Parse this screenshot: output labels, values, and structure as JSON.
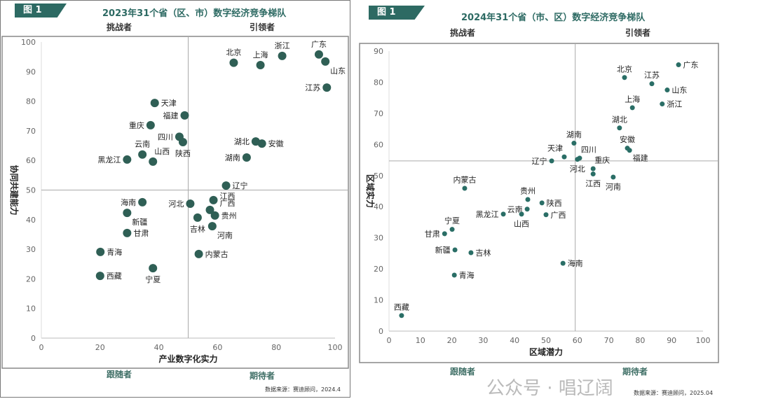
{
  "chart_data": [
    {
      "type": "scatter",
      "tag": "图 1",
      "title": "2023年31个省（区、市）数字经济竞争梯队",
      "xlabel": "产业数字化实力",
      "ylabel": "协同共建能力",
      "xlim": [
        0,
        100
      ],
      "ylim": [
        0,
        100
      ],
      "xticks": [
        0,
        20,
        40,
        60,
        80,
        100
      ],
      "yticks": [
        0,
        10,
        20,
        30,
        40,
        50,
        60,
        70,
        80,
        90,
        100
      ],
      "divider": {
        "x": 50,
        "y": 50
      },
      "quadrants": {
        "top_left": "挑战者",
        "top_right": "引领者",
        "bottom_left": "跟随者",
        "bottom_right": "期待者"
      },
      "source": "数据来源：赛迪顾问，2024.4",
      "color": "#2f5f55",
      "points": [
        {
          "name": "北京",
          "x": 65.5,
          "y": 93
        },
        {
          "name": "上海",
          "x": 74.6,
          "y": 92.2
        },
        {
          "name": "浙江",
          "x": 82,
          "y": 95.3
        },
        {
          "name": "广东",
          "x": 94.5,
          "y": 95.8
        },
        {
          "name": "山东",
          "x": 96.7,
          "y": 93.4
        },
        {
          "name": "江苏",
          "x": 97.2,
          "y": 84.6
        },
        {
          "name": "天津",
          "x": 38.6,
          "y": 79.4
        },
        {
          "name": "福建",
          "x": 48.8,
          "y": 75.2
        },
        {
          "name": "重庆",
          "x": 37.2,
          "y": 71.9
        },
        {
          "name": "四川",
          "x": 47,
          "y": 68
        },
        {
          "name": "陕西",
          "x": 48.2,
          "y": 66.2
        },
        {
          "name": "云南",
          "x": 34.4,
          "y": 62
        },
        {
          "name": "山西",
          "x": 38,
          "y": 59.6
        },
        {
          "name": "黑龙江",
          "x": 29.2,
          "y": 60.3
        },
        {
          "name": "湖北",
          "x": 73,
          "y": 66.4
        },
        {
          "name": "安徽",
          "x": 75.1,
          "y": 65.7
        },
        {
          "name": "湖南",
          "x": 69.9,
          "y": 61
        },
        {
          "name": "辽宁",
          "x": 62.9,
          "y": 51.5
        },
        {
          "name": "海南",
          "x": 34.4,
          "y": 45.9
        },
        {
          "name": "新疆",
          "x": 29.2,
          "y": 42.3
        },
        {
          "name": "甘肃",
          "x": 29.2,
          "y": 35.5
        },
        {
          "name": "青海",
          "x": 20.1,
          "y": 29.1
        },
        {
          "name": "西藏",
          "x": 20,
          "y": 21
        },
        {
          "name": "宁夏",
          "x": 38,
          "y": 23.6
        },
        {
          "name": "河北",
          "x": 50.7,
          "y": 45.4
        },
        {
          "name": "江西",
          "x": 58.6,
          "y": 46.6
        },
        {
          "name": "广西",
          "x": 57.4,
          "y": 43.3
        },
        {
          "name": "贵州",
          "x": 59.1,
          "y": 41.4
        },
        {
          "name": "吉林",
          "x": 53.2,
          "y": 40.7
        },
        {
          "name": "河南",
          "x": 58.2,
          "y": 37.8
        },
        {
          "name": "内蒙古",
          "x": 53.6,
          "y": 28.4
        }
      ]
    },
    {
      "type": "scatter",
      "tag": "图 1",
      "title": "2024年31个省（市、区）数字经济竞争梯队",
      "xlabel": "区域潜力",
      "ylabel": "区域实力",
      "xlim": [
        0,
        100
      ],
      "ylim": [
        0,
        90
      ],
      "xticks": [
        0,
        10,
        20,
        30,
        40,
        50,
        60,
        70,
        80,
        90,
        100
      ],
      "yticks": [
        0,
        10,
        20,
        30,
        40,
        50,
        60,
        70,
        80,
        90
      ],
      "divider": {
        "x": 59.3,
        "y": 54.7
      },
      "quadrants": {
        "top_left": "挑战者",
        "top_right": "引领者",
        "bottom_left": "跟随者",
        "bottom_right": "期待者"
      },
      "source": "数据来源：赛迪顾问，2025.04",
      "color": "#2a6e66",
      "points": [
        {
          "name": "广东",
          "x": 92.2,
          "y": 85.6
        },
        {
          "name": "北京",
          "x": 75,
          "y": 81.5
        },
        {
          "name": "江苏",
          "x": 83.7,
          "y": 79.5
        },
        {
          "name": "山东",
          "x": 88.6,
          "y": 77.5
        },
        {
          "name": "浙江",
          "x": 87,
          "y": 73
        },
        {
          "name": "上海",
          "x": 77.5,
          "y": 71.8
        },
        {
          "name": "湖北",
          "x": 73.4,
          "y": 65.3
        },
        {
          "name": "湖南",
          "x": 58.9,
          "y": 60.4
        },
        {
          "name": "安徽",
          "x": 75.9,
          "y": 58.8
        },
        {
          "name": "福建",
          "x": 76.6,
          "y": 58.1
        },
        {
          "name": "天津",
          "x": 55.8,
          "y": 56
        },
        {
          "name": "四川",
          "x": 60.7,
          "y": 55.6
        },
        {
          "name": "河北",
          "x": 60,
          "y": 55.2
        },
        {
          "name": "辽宁",
          "x": 51.8,
          "y": 54.7
        },
        {
          "name": "重庆",
          "x": 65,
          "y": 52.2
        },
        {
          "name": "江西",
          "x": 65,
          "y": 50.5
        },
        {
          "name": "河南",
          "x": 71.4,
          "y": 49.5
        },
        {
          "name": "内蒙古",
          "x": 24.1,
          "y": 45.9
        },
        {
          "name": "贵州",
          "x": 44.2,
          "y": 42.3
        },
        {
          "name": "陕西",
          "x": 48.7,
          "y": 41.2
        },
        {
          "name": "云南",
          "x": 44,
          "y": 39.2
        },
        {
          "name": "黑龙江",
          "x": 36.4,
          "y": 37.6
        },
        {
          "name": "山西",
          "x": 42.2,
          "y": 37.6
        },
        {
          "name": "广西",
          "x": 50,
          "y": 37.4
        },
        {
          "name": "宁夏",
          "x": 20.1,
          "y": 32.7
        },
        {
          "name": "甘肃",
          "x": 17.7,
          "y": 31.3
        },
        {
          "name": "新疆",
          "x": 21,
          "y": 26.1
        },
        {
          "name": "吉林",
          "x": 26.1,
          "y": 25.2
        },
        {
          "name": "海南",
          "x": 55.4,
          "y": 21.8
        },
        {
          "name": "青海",
          "x": 20.8,
          "y": 18
        },
        {
          "name": "西藏",
          "x": 4,
          "y": 5
        }
      ]
    }
  ],
  "watermark": "公众号 · 唱辽阔"
}
